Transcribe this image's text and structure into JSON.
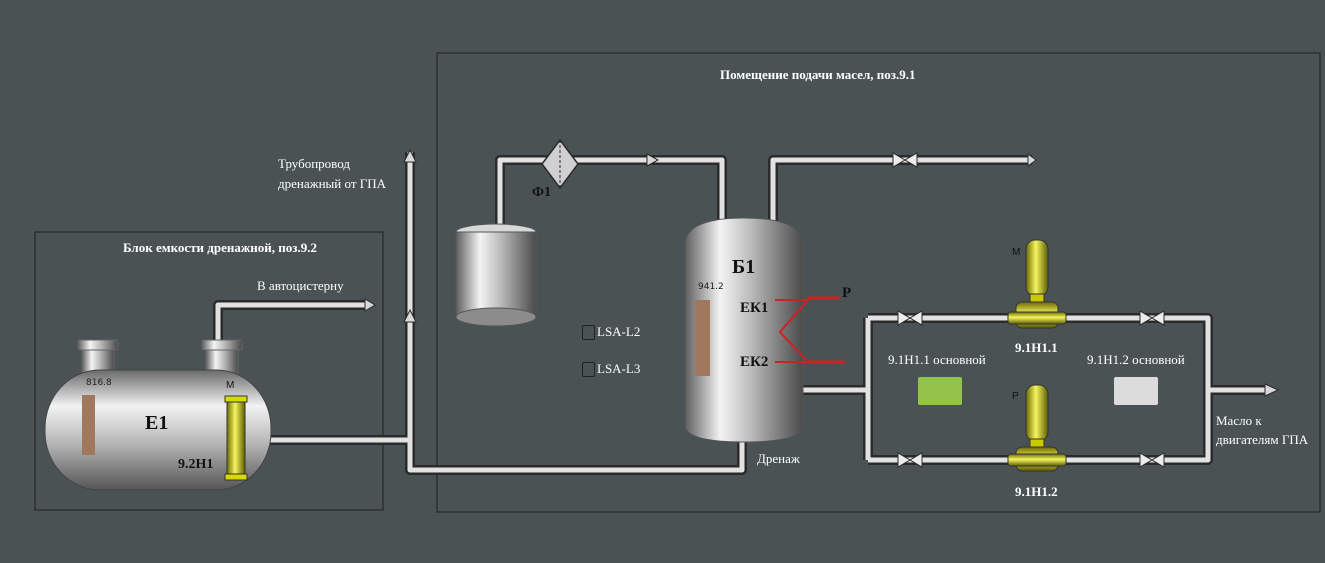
{
  "colors": {
    "background": "#4a5254",
    "pipe": "#e2e2e2",
    "heater": "#cc2222",
    "pump_yellow": "#e6e600",
    "indicator_main_1": "#93c34a",
    "indicator_main_2": "#dcdcdc",
    "level_bar": "#a07860"
  },
  "drain_block": {
    "title": "Блок емкости дренажной, поз.9.2",
    "outlet_label": "В автоцистерну",
    "tank_name": "Е1",
    "level_value": "816.8",
    "pump_letter": "М",
    "pump_tag": "9.2Н1"
  },
  "drain_pipe_label_line1": "Трубопровод",
  "drain_pipe_label_line2": "дренажный от ГПА",
  "oil_room": {
    "title": "Помещение подачи масел, поз.9.1",
    "filter_label": "Ф1",
    "tank_name": "Б1",
    "level_value": "941.2",
    "heater1": "ЕК1",
    "heater2": "ЕК2",
    "heater_letter": "Р",
    "drain_label": "Дренаж",
    "level_switches": [
      "LSA-L2",
      "LSA-L3"
    ],
    "pump1": {
      "tag": "9.1Н1.1",
      "letter": "М",
      "status_label": "9.1Н1.1 основной"
    },
    "pump2": {
      "tag": "9.1Н1.2",
      "letter": "Р",
      "status_label": "9.1Н1.2 основной"
    },
    "outlet_line1": "Масло к",
    "outlet_line2": "двигателям ГПА"
  }
}
